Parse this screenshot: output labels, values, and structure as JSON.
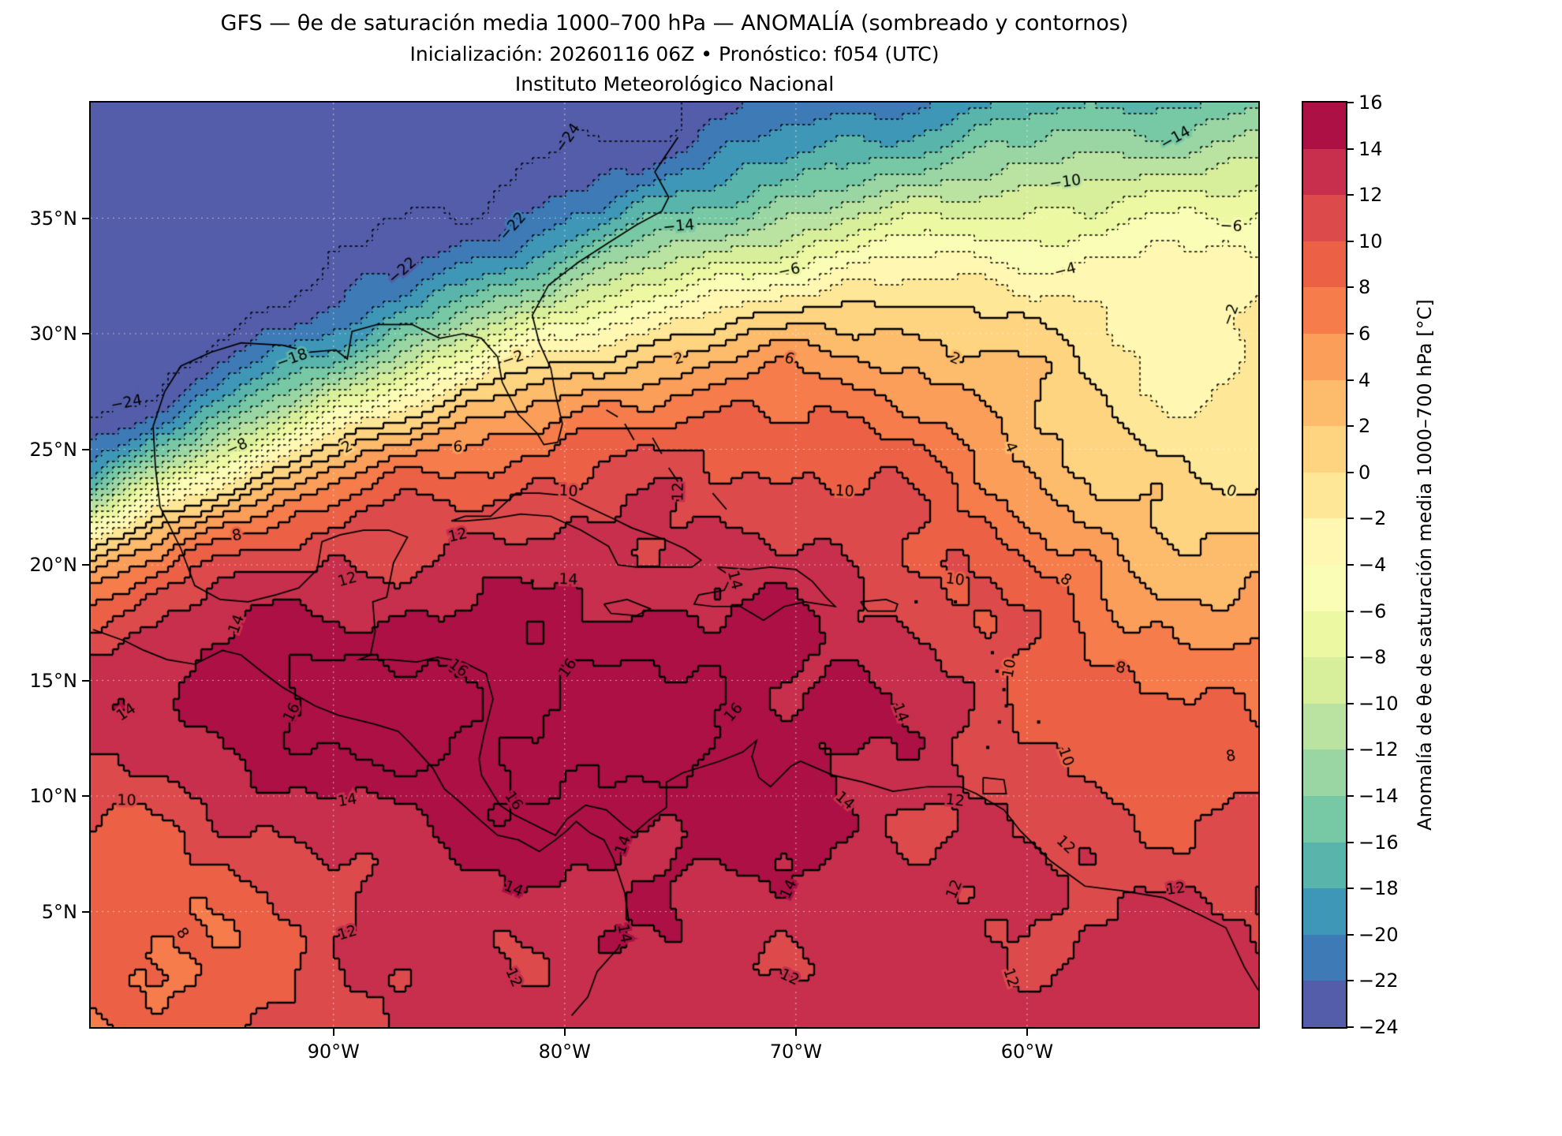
{
  "title": {
    "line1": "GFS — θe de saturación media 1000–700 hPa — ANOMALÍA (sombreado y contornos)",
    "line2": "Inicialización: 20260116 06Z    •    Pronóstico: f054 (UTC)",
    "line3": "Instituto Meteorológico Nacional"
  },
  "axes": {
    "lat_ticks": [
      {
        "value": 35,
        "label": "35°N"
      },
      {
        "value": 30,
        "label": "30°N"
      },
      {
        "value": 25,
        "label": "25°N"
      },
      {
        "value": 20,
        "label": "20°N"
      },
      {
        "value": 15,
        "label": "15°N"
      },
      {
        "value": 10,
        "label": "10°N"
      },
      {
        "value": 5,
        "label": "5°N"
      }
    ],
    "lon_ticks": [
      {
        "value": 90,
        "label": "90°W"
      },
      {
        "value": 80,
        "label": "80°W"
      },
      {
        "value": 70,
        "label": "70°W"
      },
      {
        "value": 60,
        "label": "60°W"
      }
    ]
  },
  "colorbar": {
    "label": "Anomalía de θe de saturación media 1000–700 hPa [°C]",
    "max": 16,
    "min": -24,
    "tick_values": [
      16,
      14,
      12,
      10,
      8,
      6,
      4,
      2,
      0,
      -2,
      -4,
      -6,
      -8,
      -10,
      -12,
      -14,
      -16,
      -18,
      -20,
      -22,
      -24
    ],
    "tick_labels": [
      "16",
      "14",
      "12",
      "10",
      "8",
      "6",
      "4",
      "2",
      "0",
      "−2",
      "−4",
      "−6",
      "−8",
      "−10",
      "−12",
      "−14",
      "−16",
      "−18",
      "−20",
      "−22",
      "−24"
    ]
  },
  "chart_data": {
    "type": "heatmap",
    "variable": "Anomalía de θe de saturación media 1000–700 hPa",
    "units": "°C",
    "model": "GFS",
    "init": "20260116 06Z",
    "forecast": "f054 (UTC)",
    "extent": {
      "lon_west": 100.5,
      "lon_east": 50.0,
      "lat_south": 0.0,
      "lat_north": 40.0
    },
    "levels": {
      "min": -24,
      "max": 16,
      "interval": 2
    },
    "contour_style": {
      "negative": "dotted",
      "zero_and_positive": "solid"
    },
    "colormap": [
      "#5e4fa2",
      "#3288bd",
      "#66c2a5",
      "#abdda4",
      "#e6f598",
      "#ffffbf",
      "#fee08b",
      "#fdae61",
      "#f46d43",
      "#d53e4f",
      "#9e0142"
    ],
    "field_model": {
      "north_base": -26.5,
      "south_base": 12.8,
      "front_a": 22.0,
      "front_b": 0.5235,
      "front_c": -0.00467,
      "width_a": 1.6,
      "width_b": 0.054,
      "gaussians": [
        {
          "name": "caribbean-max",
          "lon": 78,
          "lat": 13,
          "amp": 4.0,
          "sx": 12,
          "sy": 6
        },
        {
          "name": "west-caribbean-max",
          "lon": 92,
          "lat": 14,
          "amp": 3.5,
          "sx": 6,
          "sy": 4
        },
        {
          "name": "pacific-min",
          "lon": 98,
          "lat": 3,
          "amp": -5.0,
          "sx": 8,
          "sy": 8
        },
        {
          "name": "atlantic-trough",
          "lon": 51,
          "lat": 23,
          "amp": -8.0,
          "sx": 9,
          "sy": 9
        },
        {
          "name": "ne-atlantic-cool",
          "lon": 56,
          "lat": 27,
          "amp": -5.0,
          "sx": 10,
          "sy": 7
        },
        {
          "name": "east-carib-reduction",
          "lon": 55,
          "lat": 12,
          "amp": -2.5,
          "sx": 9,
          "sy": 6
        }
      ],
      "noise": [
        {
          "a": 0.9,
          "fx": 0.55,
          "px": 0.3,
          "fy": 0.62,
          "py": 1.0
        },
        {
          "a": 0.55,
          "fx": 1.15,
          "px": 2.2,
          "fy": 1.05,
          "py": 0.5
        },
        {
          "a": 0.35,
          "fx": 2.1,
          "px": 4.0,
          "fy": 1.9,
          "py": 2.0
        }
      ]
    },
    "coastlines": {
      "polylines": [
        [
          [
            97.8,
            26.0
          ],
          [
            97.3,
            27.5
          ],
          [
            96.6,
            28.6
          ],
          [
            95.3,
            29.2
          ],
          [
            94.0,
            29.6
          ],
          [
            92.2,
            29.5
          ],
          [
            91.0,
            29.2
          ],
          [
            89.9,
            29.3
          ],
          [
            89.4,
            28.9
          ],
          [
            89.2,
            30.1
          ],
          [
            88.1,
            30.4
          ],
          [
            86.6,
            30.4
          ],
          [
            85.4,
            29.8
          ],
          [
            84.4,
            30.0
          ],
          [
            83.6,
            29.8
          ],
          [
            82.9,
            29.0
          ],
          [
            82.7,
            27.9
          ],
          [
            82.0,
            26.5
          ],
          [
            81.2,
            25.7
          ],
          [
            80.9,
            25.2
          ],
          [
            80.3,
            25.3
          ],
          [
            80.1,
            26.1
          ],
          [
            80.4,
            27.4
          ],
          [
            80.6,
            28.5
          ],
          [
            81.1,
            29.6
          ],
          [
            81.4,
            30.8
          ],
          [
            80.7,
            32.1
          ],
          [
            79.4,
            33.1
          ],
          [
            78.0,
            34.0
          ],
          [
            76.9,
            34.7
          ],
          [
            75.8,
            35.3
          ],
          [
            75.5,
            35.9
          ],
          [
            76.1,
            37.0
          ],
          [
            75.7,
            37.6
          ],
          [
            75.1,
            38.5
          ]
        ],
        [
          [
            97.8,
            26.0
          ],
          [
            97.7,
            24.2
          ],
          [
            97.5,
            22.5
          ],
          [
            96.6,
            20.7
          ],
          [
            96.0,
            19.1
          ],
          [
            94.9,
            18.5
          ],
          [
            93.7,
            18.4
          ],
          [
            92.5,
            18.7
          ],
          [
            91.5,
            19.0
          ],
          [
            90.7,
            19.8
          ],
          [
            90.5,
            21.0
          ],
          [
            89.7,
            21.3
          ],
          [
            88.7,
            21.5
          ],
          [
            87.6,
            21.5
          ],
          [
            86.8,
            21.2
          ],
          [
            87.4,
            20.1
          ],
          [
            87.7,
            18.6
          ],
          [
            88.3,
            18.4
          ],
          [
            88.2,
            17.1
          ],
          [
            88.4,
            16.1
          ],
          [
            88.9,
            15.9
          ],
          [
            87.6,
            15.9
          ],
          [
            86.4,
            15.8
          ],
          [
            85.5,
            16.0
          ],
          [
            84.4,
            15.8
          ],
          [
            83.4,
            15.3
          ],
          [
            83.1,
            14.2
          ],
          [
            83.5,
            12.6
          ],
          [
            83.7,
            11.6
          ],
          [
            83.6,
            10.9
          ],
          [
            82.8,
            9.6
          ],
          [
            82.2,
            9.2
          ],
          [
            81.4,
            8.8
          ],
          [
            80.4,
            8.3
          ],
          [
            79.9,
            9.0
          ],
          [
            79.1,
            9.6
          ],
          [
            78.2,
            9.4
          ],
          [
            77.4,
            8.7
          ],
          [
            77.0,
            8.4
          ],
          [
            76.3,
            9.0
          ],
          [
            75.6,
            9.5
          ],
          [
            75.6,
            10.6
          ],
          [
            74.9,
            11.0
          ],
          [
            73.3,
            11.5
          ],
          [
            72.3,
            11.9
          ],
          [
            71.7,
            12.4
          ],
          [
            71.9,
            11.7
          ],
          [
            71.6,
            10.8
          ],
          [
            71.1,
            10.4
          ],
          [
            70.2,
            11.3
          ],
          [
            69.8,
            11.5
          ],
          [
            68.4,
            10.9
          ],
          [
            67.1,
            10.6
          ],
          [
            65.8,
            10.2
          ],
          [
            64.3,
            10.4
          ],
          [
            62.9,
            10.4
          ],
          [
            62.2,
            10.1
          ],
          [
            61.0,
            9.4
          ],
          [
            60.3,
            8.5
          ],
          [
            59.0,
            7.2
          ],
          [
            57.5,
            6.1
          ],
          [
            55.9,
            5.9
          ],
          [
            54.1,
            5.6
          ],
          [
            52.6,
            4.9
          ],
          [
            51.4,
            4.3
          ],
          [
            50.6,
            2.6
          ],
          [
            50.0,
            1.6
          ]
        ],
        [
          [
            100.4,
            17.2
          ],
          [
            99.0,
            16.7
          ],
          [
            98.2,
            16.3
          ],
          [
            97.2,
            15.9
          ],
          [
            96.0,
            15.7
          ],
          [
            94.8,
            16.3
          ],
          [
            94.0,
            16.1
          ],
          [
            93.0,
            15.3
          ],
          [
            92.2,
            14.7
          ],
          [
            90.8,
            13.9
          ],
          [
            89.8,
            13.5
          ],
          [
            88.2,
            13.1
          ],
          [
            87.2,
            12.8
          ],
          [
            86.7,
            12.3
          ],
          [
            85.7,
            11.2
          ],
          [
            85.2,
            10.3
          ],
          [
            84.6,
            9.8
          ],
          [
            83.6,
            8.9
          ],
          [
            82.9,
            8.3
          ],
          [
            82.0,
            8.1
          ],
          [
            81.1,
            7.6
          ],
          [
            80.4,
            8.1
          ],
          [
            79.9,
            8.5
          ],
          [
            79.5,
            8.9
          ],
          [
            78.9,
            8.4
          ],
          [
            78.3,
            8.1
          ],
          [
            77.9,
            7.3
          ],
          [
            77.7,
            6.7
          ],
          [
            77.4,
            5.8
          ],
          [
            77.2,
            4.4
          ],
          [
            77.7,
            3.4
          ],
          [
            78.6,
            2.4
          ],
          [
            79.0,
            1.3
          ],
          [
            79.7,
            0.5
          ]
        ],
        [
          [
            84.9,
            21.9
          ],
          [
            84.3,
            22.1
          ],
          [
            83.2,
            22.1
          ],
          [
            82.1,
            23.1
          ],
          [
            81.1,
            23.1
          ],
          [
            80.0,
            23.0
          ],
          [
            79.2,
            22.6
          ],
          [
            77.9,
            22.0
          ],
          [
            77.1,
            21.6
          ],
          [
            75.7,
            21.1
          ],
          [
            74.8,
            20.7
          ],
          [
            74.1,
            20.2
          ],
          [
            74.5,
            19.9
          ],
          [
            75.6,
            19.9
          ],
          [
            76.9,
            19.9
          ],
          [
            77.7,
            20.0
          ],
          [
            78.1,
            20.8
          ],
          [
            79.3,
            21.5
          ],
          [
            80.6,
            22.1
          ],
          [
            81.9,
            22.2
          ],
          [
            83.1,
            22.0
          ],
          [
            84.3,
            21.9
          ],
          [
            84.9,
            21.9
          ]
        ],
        [
          [
            73.4,
            19.9
          ],
          [
            72.0,
            19.8
          ],
          [
            71.1,
            19.9
          ],
          [
            70.0,
            19.8
          ],
          [
            69.3,
            19.3
          ],
          [
            68.7,
            18.6
          ],
          [
            68.3,
            18.2
          ],
          [
            69.6,
            18.4
          ],
          [
            70.5,
            18.2
          ],
          [
            71.4,
            17.6
          ],
          [
            72.4,
            18.2
          ],
          [
            73.6,
            18.2
          ],
          [
            74.4,
            18.3
          ],
          [
            74.2,
            18.7
          ],
          [
            73.1,
            18.9
          ],
          [
            72.8,
            19.5
          ],
          [
            73.4,
            19.9
          ]
        ],
        [
          [
            78.3,
            18.3
          ],
          [
            77.3,
            18.5
          ],
          [
            76.3,
            18.1
          ],
          [
            76.9,
            17.8
          ],
          [
            78.0,
            17.9
          ],
          [
            78.3,
            18.3
          ]
        ],
        [
          [
            67.2,
            18.4
          ],
          [
            66.1,
            18.5
          ],
          [
            65.6,
            18.3
          ],
          [
            65.7,
            18.0
          ],
          [
            66.9,
            18.0
          ],
          [
            67.2,
            18.4
          ]
        ],
        [
          [
            61.9,
            10.8
          ],
          [
            61.0,
            10.7
          ],
          [
            60.9,
            10.1
          ],
          [
            61.9,
            10.1
          ],
          [
            61.9,
            10.8
          ]
        ],
        [
          [
            78.2,
            26.7
          ],
          [
            77.7,
            26.4
          ]
        ],
        [
          [
            77.4,
            26.1
          ],
          [
            77.0,
            25.4
          ]
        ],
        [
          [
            76.2,
            25.5
          ],
          [
            75.8,
            24.8
          ]
        ],
        [
          [
            75.5,
            24.2
          ],
          [
            75.1,
            23.6
          ]
        ],
        [
          [
            73.6,
            23.1
          ],
          [
            73.0,
            22.4
          ]
        ]
      ],
      "island_points": [
        [
          61.5,
          16.2
        ],
        [
          61.3,
          15.4
        ],
        [
          61.0,
          14.6
        ],
        [
          60.9,
          13.9
        ],
        [
          61.2,
          13.2
        ],
        [
          61.7,
          12.1
        ],
        [
          59.5,
          13.2
        ],
        [
          63.1,
          18.4
        ],
        [
          64.8,
          18.4
        ],
        [
          81.4,
          19.3
        ]
      ]
    }
  }
}
